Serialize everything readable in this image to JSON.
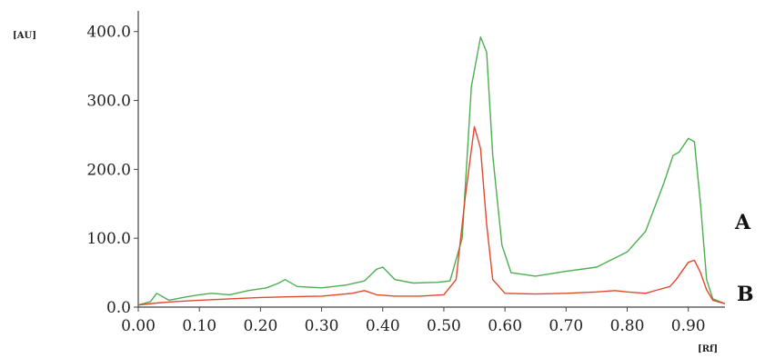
{
  "chart_data": {
    "type": "line",
    "title": "",
    "ylabel": "[AU]",
    "xlabel": "[Rf]",
    "xlim": [
      0.0,
      0.96
    ],
    "ylim": [
      0,
      430
    ],
    "x_ticks": [
      "0.00",
      "0.10",
      "0.20",
      "0.30",
      "0.40",
      "0.50",
      "0.60",
      "0.70",
      "0.80",
      "0.90"
    ],
    "x_tick_values": [
      0.0,
      0.1,
      0.2,
      0.3,
      0.4,
      0.5,
      0.6,
      0.7,
      0.8,
      0.9
    ],
    "y_ticks": [
      "0.0",
      "100.0",
      "200.0",
      "300.0",
      "400.0"
    ],
    "y_tick_values": [
      0,
      100,
      200,
      300,
      400
    ],
    "grid": false,
    "series": [
      {
        "name": "A",
        "color": "#4caf50",
        "x": [
          0.0,
          0.02,
          0.03,
          0.05,
          0.08,
          0.1,
          0.12,
          0.15,
          0.18,
          0.21,
          0.23,
          0.24,
          0.26,
          0.3,
          0.34,
          0.37,
          0.39,
          0.4,
          0.42,
          0.45,
          0.49,
          0.51,
          0.53,
          0.545,
          0.56,
          0.57,
          0.58,
          0.595,
          0.61,
          0.65,
          0.7,
          0.75,
          0.8,
          0.83,
          0.86,
          0.875,
          0.885,
          0.9,
          0.91,
          0.92,
          0.93,
          0.94,
          0.96
        ],
        "y": [
          3,
          8,
          20,
          10,
          15,
          18,
          20,
          18,
          24,
          28,
          35,
          40,
          30,
          28,
          32,
          38,
          55,
          58,
          40,
          35,
          36,
          38,
          100,
          320,
          392,
          370,
          220,
          90,
          50,
          45,
          52,
          58,
          80,
          110,
          180,
          220,
          225,
          245,
          240,
          150,
          40,
          12,
          5
        ]
      },
      {
        "name": "B",
        "color": "#e0492c",
        "x": [
          0.0,
          0.03,
          0.06,
          0.1,
          0.15,
          0.2,
          0.25,
          0.3,
          0.35,
          0.37,
          0.39,
          0.42,
          0.46,
          0.5,
          0.52,
          0.535,
          0.55,
          0.56,
          0.57,
          0.58,
          0.6,
          0.65,
          0.7,
          0.75,
          0.78,
          0.8,
          0.83,
          0.85,
          0.87,
          0.88,
          0.9,
          0.91,
          0.92,
          0.93,
          0.94,
          0.96
        ],
        "y": [
          3,
          6,
          8,
          10,
          12,
          14,
          15,
          16,
          20,
          24,
          18,
          16,
          16,
          18,
          40,
          160,
          262,
          230,
          120,
          40,
          20,
          19,
          20,
          22,
          24,
          22,
          20,
          25,
          30,
          40,
          65,
          68,
          50,
          25,
          10,
          5
        ]
      }
    ],
    "series_labels": [
      "A",
      "B"
    ]
  }
}
